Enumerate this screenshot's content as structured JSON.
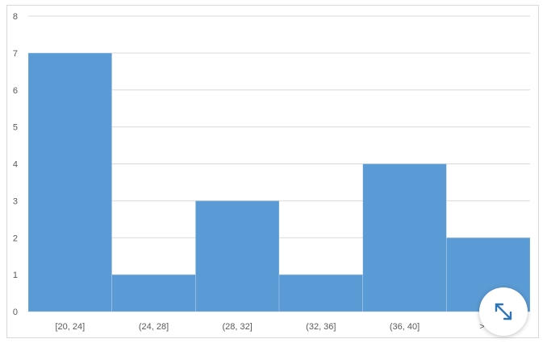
{
  "chart_data": {
    "type": "bar",
    "title": "",
    "xlabel": "",
    "ylabel": "",
    "categories": [
      "[20, 24]",
      "(24, 28]",
      "(28, 32]",
      "(32, 36]",
      "(36, 40]",
      "> 40"
    ],
    "values": [
      7,
      1,
      3,
      1,
      4,
      2
    ],
    "ylim": [
      0,
      8
    ],
    "yticks": [
      "0",
      "1",
      "2",
      "3",
      "4",
      "5",
      "6",
      "7",
      "8"
    ],
    "grid": true,
    "legend": "none",
    "bar_color": "#5b9bd5",
    "gap_width": 0
  },
  "colors": {
    "gridline": "#d9d9d9",
    "axis_text": "#595959",
    "accent_icon": "#2e75b6"
  },
  "controls": {
    "expand_icon": "expand-arrows-icon"
  }
}
